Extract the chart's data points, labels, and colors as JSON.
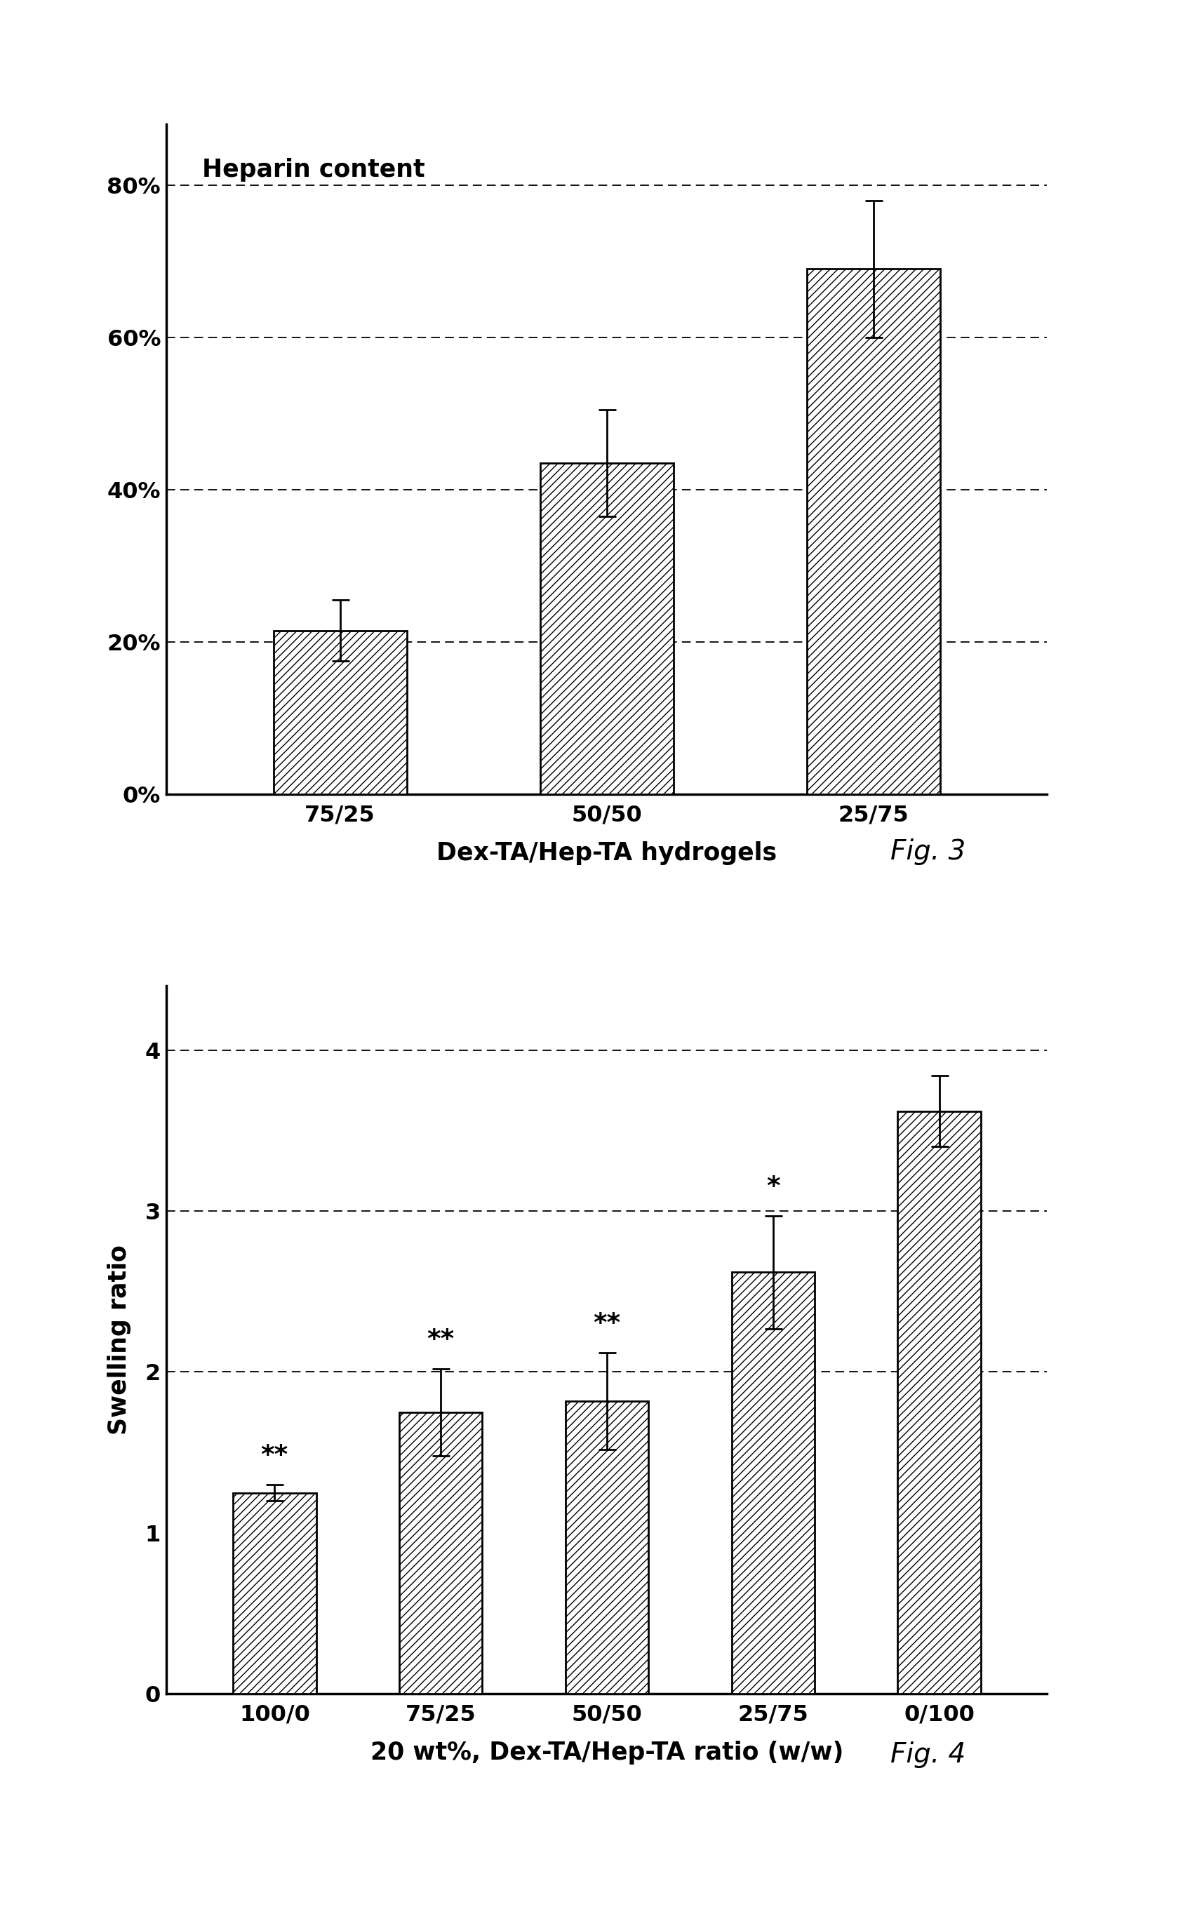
{
  "fig3": {
    "categories": [
      "75/25",
      "50/50",
      "25/75"
    ],
    "values": [
      0.215,
      0.435,
      0.69
    ],
    "errors": [
      0.04,
      0.07,
      0.09
    ],
    "xlabel": "Dex-TA/Hep-TA hydrogels",
    "title_text": "Heparin content",
    "ylim": [
      0,
      0.88
    ],
    "yticks": [
      0.0,
      0.2,
      0.4,
      0.6,
      0.8
    ],
    "yticklabels": [
      "0%",
      "20%",
      "40%",
      "60%",
      "80%"
    ],
    "gridlines": [
      0.2,
      0.4,
      0.6,
      0.8
    ],
    "fig_label": "Fig. 3"
  },
  "fig4": {
    "categories": [
      "100/0",
      "75/25",
      "50/50",
      "25/75",
      "0/100"
    ],
    "values": [
      1.25,
      1.75,
      1.82,
      2.62,
      3.62
    ],
    "errors": [
      0.05,
      0.27,
      0.3,
      0.35,
      0.22
    ],
    "annotations": [
      "**",
      "**",
      "**",
      "*",
      ""
    ],
    "ylabel": "Swelling ratio",
    "xlabel": "20 wt%, Dex-TA/Hep-TA ratio (w/w)",
    "ylim": [
      0,
      4.4
    ],
    "yticks": [
      0,
      1,
      2,
      3,
      4
    ],
    "gridlines": [
      2.0,
      3.0,
      4.0
    ],
    "fig_label": "Fig. 4"
  },
  "bar_color": "#ffffff",
  "bar_edgecolor": "#000000",
  "hatch": "///",
  "background_color": "#ffffff"
}
